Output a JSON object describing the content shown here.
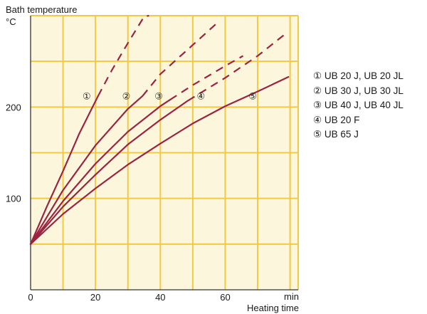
{
  "chart_data": {
    "type": "line",
    "ylabel": "Bath temperature",
    "yunit": "°C",
    "xunit": "min",
    "xlabel": "Heating time",
    "xlim": [
      0,
      82.5
    ],
    "ylim": [
      0,
      300
    ],
    "xticks": [
      "0",
      "20",
      "40",
      "60"
    ],
    "xtick_values": [
      0,
      20,
      40,
      60
    ],
    "yticks": [
      "100",
      "200"
    ],
    "ytick_values": [
      100,
      200
    ],
    "grid": true,
    "colors": {
      "background": "#fcf7dc",
      "grid": "#f3c845",
      "line": "#9b2442",
      "axis": "#333333"
    },
    "series": [
      {
        "name": "UB 20 J, UB 20 JL",
        "marker": "①",
        "marker_x": 17.3,
        "solid": {
          "x": [
            0,
            5,
            10,
            15,
            20.8
          ],
          "y": [
            50,
            91,
            130,
            171,
            212
          ]
        },
        "dashed": {
          "x": [
            20.8,
            25,
            30,
            35,
            36.5
          ],
          "y": [
            212,
            240,
            270,
            299,
            300
          ]
        }
      },
      {
        "name": "UB 30 J, UB 30 JL",
        "marker": "②",
        "marker_x": 29.5,
        "solid": {
          "x": [
            0,
            10,
            20,
            30,
            34.5
          ],
          "y": [
            50,
            109,
            158,
            198,
            212
          ]
        },
        "dashed": {
          "x": [
            34.5,
            40,
            50,
            57.5
          ],
          "y": [
            212,
            236,
            268,
            292
          ]
        }
      },
      {
        "name": "UB 40 J, UB 40 JL",
        "marker": "③",
        "marker_x": 39.5,
        "solid": {
          "x": [
            0,
            10,
            20,
            30,
            40,
            43
          ],
          "y": [
            50,
            97,
            138,
            173,
            201,
            208
          ]
        },
        "dashed": {
          "x": [
            43,
            50,
            60,
            65.5
          ],
          "y": [
            208,
            224,
            245,
            256
          ]
        }
      },
      {
        "name": "UB 20 F",
        "marker": "④",
        "marker_x": 52.5,
        "solid": {
          "x": [
            0,
            10,
            20,
            30,
            40,
            48.5
          ],
          "y": [
            50,
            91,
            126,
            159,
            186,
            207
          ]
        },
        "dashed": {
          "x": [
            48.5,
            60,
            70,
            78.5
          ],
          "y": [
            207,
            232,
            256,
            280
          ]
        }
      },
      {
        "name": "UB 65 J",
        "marker": "⑤",
        "marker_x": 68.5,
        "solid": {
          "x": [
            0,
            10,
            20,
            30,
            40,
            50,
            60,
            70,
            79.5
          ],
          "y": [
            50,
            83,
            111,
            137,
            160,
            182,
            201,
            217,
            233
          ]
        },
        "dashed": null
      }
    ]
  },
  "legend": [
    {
      "marker": "①",
      "label": "UB 20 J, UB 20 JL"
    },
    {
      "marker": "②",
      "label": "UB 30 J, UB 30 JL"
    },
    {
      "marker": "③",
      "label": "UB 40 J, UB 40 JL"
    },
    {
      "marker": "④",
      "label": "UB 20 F"
    },
    {
      "marker": "⑤",
      "label": "UB 65 J"
    }
  ]
}
